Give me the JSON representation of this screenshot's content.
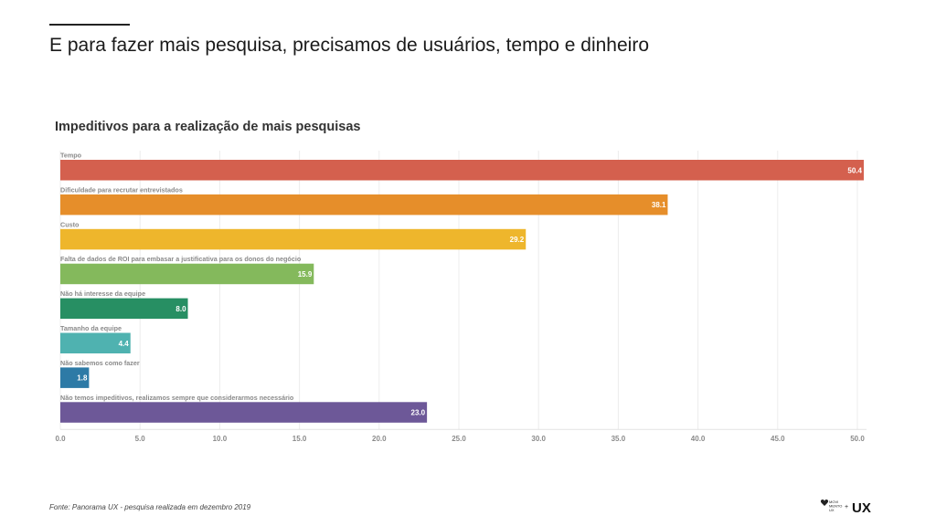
{
  "slide": {
    "title": "E para fazer mais pesquisa, precisamos de usuários, tempo e dinheiro",
    "footnote": "Fonte: Panorama UX - pesquisa realizada em dezembro 2019"
  },
  "logo": {
    "small_text": [
      "MOVI",
      "MENTO",
      "UX"
    ],
    "plus": "+",
    "mark": "UX"
  },
  "chart_data": {
    "type": "bar",
    "orientation": "horizontal",
    "title": "Impeditivos para a realização de mais pesquisas",
    "categories": [
      "Tempo",
      "Dificuldade para recrutar entrevistados",
      "Custo",
      "Falta de dados de ROI para embasar a justificativa para os donos do negócio",
      "Não há interesse da equipe",
      "Tamanho da equipe",
      "Não sabemos como fazer",
      "Não temos impeditivos, realizamos sempre que considerarmos necessário"
    ],
    "values": [
      50.4,
      38.1,
      29.2,
      15.9,
      8.0,
      4.4,
      1.8,
      23.0
    ],
    "value_labels": [
      "50.4",
      "38.1",
      "29.2",
      "15.9",
      "8.0",
      "4.4",
      "1.8",
      "23.0"
    ],
    "colors": [
      "#d4604e",
      "#e68e2a",
      "#eeb62c",
      "#84b95c",
      "#278f63",
      "#4fb2b0",
      "#2d7aa6",
      "#6d5898"
    ],
    "xlim": [
      0,
      50
    ],
    "xticks": [
      "0.0",
      "5.0",
      "10.0",
      "15.0",
      "20.0",
      "25.0",
      "30.0",
      "35.0",
      "40.0",
      "45.0",
      "50.0"
    ],
    "xlabel": "",
    "ylabel": "",
    "grid": true,
    "legend": "none"
  }
}
